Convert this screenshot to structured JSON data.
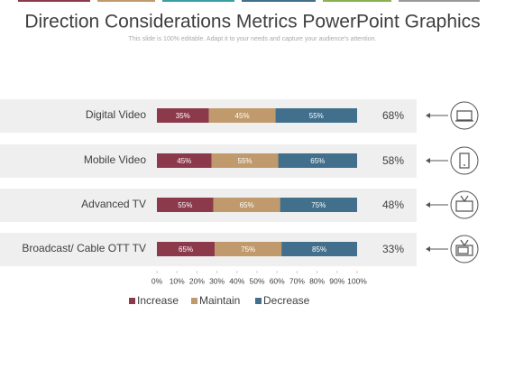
{
  "chart_data": {
    "type": "bar",
    "stacking": "percent",
    "title": "Direction Considerations Metrics PowerPoint Graphics",
    "subtitle": "This slide is 100% editable. Adapt it to your needs and capture your audience's attention.",
    "categories": [
      "Digital Video",
      "Mobile Video",
      "Advanced TV",
      "Broadcast/  Cable OTT TV"
    ],
    "series": [
      {
        "name": "Increase",
        "color": "#8c3a4b",
        "values": [
          35,
          45,
          55,
          65
        ],
        "value_labels": [
          "35%",
          "45%",
          "55%",
          "65%"
        ]
      },
      {
        "name": "Maintain",
        "color": "#c09a6c",
        "values": [
          45,
          55,
          65,
          75
        ],
        "value_labels": [
          "45%",
          "55%",
          "65%",
          "75%"
        ]
      },
      {
        "name": "Decrease",
        "color": "#416f8c",
        "values": [
          55,
          65,
          75,
          85
        ],
        "value_labels": [
          "55%",
          "65%",
          "75%",
          "85%"
        ]
      }
    ],
    "right_labels": [
      "68%",
      "58%",
      "48%",
      "33%"
    ],
    "xlim": [
      0,
      100
    ],
    "xticks": [
      {
        "value": 0,
        "label": "0%"
      },
      {
        "value": 10,
        "label": "10%"
      },
      {
        "value": 20,
        "label": "20%"
      },
      {
        "value": 30,
        "label": "30%"
      },
      {
        "value": 40,
        "label": "40%"
      },
      {
        "value": 50,
        "label": "50%"
      },
      {
        "value": 60,
        "label": "60%"
      },
      {
        "value": 70,
        "label": "70%"
      },
      {
        "value": 80,
        "label": "80%"
      },
      {
        "value": 90,
        "label": "90%"
      },
      {
        "value": 100,
        "label": "100%"
      }
    ],
    "legend": "bottom"
  }
}
